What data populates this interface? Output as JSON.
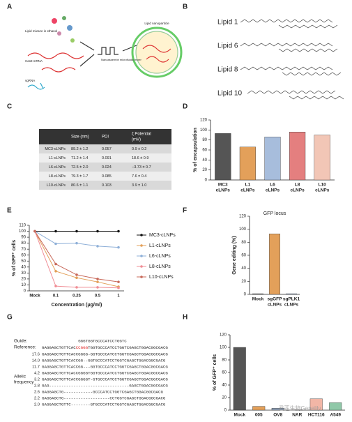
{
  "panel_letters": [
    "A",
    "B",
    "C",
    "D",
    "E",
    "F",
    "G",
    "H"
  ],
  "schematic": {
    "lipid_mixture": "Lipid mixture in ethanol",
    "mrna": "Cas9 mRNA",
    "sgrna": "sgRNA",
    "mixer": "Nanoassemblr microfluidic mixer",
    "particle": "Lipid nanoparticle"
  },
  "lipids": [
    "Lipid 1",
    "Lipid 6",
    "Lipid 8",
    "Lipid 10"
  ],
  "table": {
    "headers": [
      "Size (nm)",
      "PDI",
      [
        "ζ Potential",
        "(mV)"
      ]
    ],
    "rows": [
      [
        "MC3-cLNPs",
        "89.2 ± 1.2",
        "0.057",
        "0.9 ± 0.2"
      ],
      [
        "L1-cLNPs",
        "71.2 ± 1.4",
        "0.091",
        "18.6 ± 0.9"
      ],
      [
        "L6-cLNPs",
        "72.5 ± 2.0",
        "0.024",
        "−3.73 ± 0.7"
      ],
      [
        "L8-cLNPs",
        "79.3 ± 1.7",
        "0.085",
        "7.6 ± 0.4"
      ],
      [
        "L10-cLNPs",
        "80.6 ± 1.1",
        "0.103",
        "3.9 ± 1.0"
      ]
    ]
  },
  "chart_data": [
    {
      "type": "bar",
      "ylabel": "% of encapsulation",
      "categories": [
        [
          "MC3",
          "cLNPs"
        ],
        [
          "L1",
          "cLNPs"
        ],
        [
          "L6",
          "cLNPs"
        ],
        [
          "L8",
          "cLNPs"
        ],
        [
          "L10",
          "cLNPs"
        ]
      ],
      "values": [
        93,
        66,
        86,
        96,
        90
      ],
      "colors": [
        "#555555",
        "#e3a05a",
        "#a7bddc",
        "#e47f7f",
        "#f2c6b6"
      ],
      "ylim": [
        0,
        120
      ],
      "yticks": [
        0,
        20,
        40,
        60,
        80,
        100,
        120
      ]
    },
    {
      "type": "line",
      "ylabel": "% of GFP⁺ cells",
      "xlabel": "Concentration (μg/ml)",
      "categories": [
        "Mock",
        "0.1",
        "0.25",
        "0.5",
        "1"
      ],
      "ylim": [
        0,
        110
      ],
      "yticks": [
        0,
        10,
        20,
        30,
        40,
        50,
        60,
        70,
        80,
        90,
        100,
        110
      ],
      "series": [
        {
          "name": "MC3-cLNPs",
          "color": "#111111",
          "values": [
            100,
            100,
            100,
            100,
            100
          ]
        },
        {
          "name": "L1-cLNPs",
          "color": "#e3a05a",
          "values": [
            100,
            33,
            22,
            15,
            7
          ]
        },
        {
          "name": "L6-cLNPs",
          "color": "#8fb0d8",
          "values": [
            100,
            79,
            80,
            75,
            73
          ]
        },
        {
          "name": "L8-cLNPs",
          "color": "#f08d95",
          "values": [
            100,
            8,
            6,
            6,
            5
          ]
        },
        {
          "name": "L10-cLNPs",
          "color": "#c8695a",
          "values": [
            100,
            45,
            27,
            20,
            15
          ]
        }
      ]
    },
    {
      "type": "bar",
      "title": "GFP locus",
      "ylabel": "Gene editing (%)",
      "categories": [
        [
          "Mock"
        ],
        [
          "sgGFP",
          "cLNPs"
        ],
        [
          "sgPLK1",
          "cLNPs"
        ]
      ],
      "values": [
        1,
        93,
        1
      ],
      "colors": [
        "#555555",
        "#e3a05a",
        "#8fb0d8"
      ],
      "ylim": [
        0,
        120
      ],
      "yticks": [
        0,
        20,
        40,
        60,
        80,
        100,
        120
      ]
    },
    {
      "type": "bar",
      "ylabel": "% of GFP⁺ cells",
      "categories": [
        [
          "Mock"
        ],
        [
          "005"
        ],
        [
          "OV8"
        ],
        [
          "NAR"
        ],
        [
          "HCT116"
        ],
        [
          "A549"
        ]
      ],
      "values": [
        100,
        6,
        3,
        0.5,
        18,
        12
      ],
      "colors": [
        "#555555",
        "#e3a05a",
        "#8fa0b8",
        "#f0a0a8",
        "#f2b6a6",
        "#8fc8a8"
      ],
      "ylim": [
        0,
        120
      ],
      "yticks": [
        0,
        20,
        40,
        60,
        80,
        100,
        120
      ]
    }
  ],
  "alignment": {
    "guide_label": "Guide:",
    "guide": "GGGTGGTGCCCATCCTGGTC",
    "reference_label": "Reference:",
    "reference": [
      "GAGGAGCTGTTCAC",
      "CCGGG",
      "TGGTGCCCATCCTGGTCGAGCTGGACGGCGACG"
    ],
    "ylabel": [
      "Allelic",
      "frequency"
    ],
    "rows": [
      [
        "17.6",
        "GAGGAGCTGTTCACCGGGG-GGTGCCCATCCTGGTCGAGCTGGACGGCGACG"
      ],
      [
        "14.0",
        "GAGGAGCTGTTCACCGG--GGTGCCCATCCTGGTCGAGCTGGACGGCGACG"
      ],
      [
        "11.7",
        "GAGGAGCTGTTCACCGG---GGTGCCCATCCTGGTCGAGCTGGACGGCGACG"
      ],
      [
        "4.2",
        "GAGGAGCTGTTCACCGGGGTGGTGCCCATCCTGGTCGAGCTGGACGGCGACG"
      ],
      [
        "3.2",
        "GAGGAGCTGTTCACCGGGGT-GTGCCCATCCTGGTCGAGCTGGACGGCGACG"
      ],
      [
        "2.8",
        "GAG---------------------------------GAGCTGGACGGCGACG"
      ],
      [
        "2.6",
        "GAGGAGCTG------------GCCCATCCTGGTCGAGCTGGACGGCGACG"
      ],
      [
        "2.2",
        "GAGGAGCTG-------------------CCTGGTCGAGCTGGACGGCGACG"
      ],
      [
        "2.0",
        "GAGGAGCTGTTC--------GTGCCCATCCTGGTCGAGCTGGACGGCGACG"
      ]
    ]
  },
  "watermark": "君莲生物Genelily"
}
